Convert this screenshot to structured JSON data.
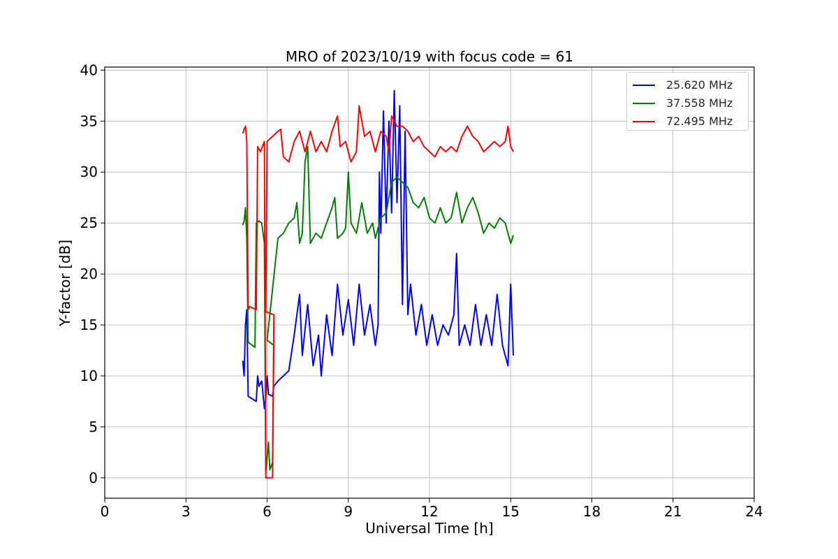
{
  "chart_data": {
    "type": "line",
    "title": "MRO of 2023/10/19 with focus code = 61",
    "xlabel": "Universal Time [h]",
    "ylabel": "Y-factor [dB]",
    "xlim": [
      0,
      24
    ],
    "ylim": [
      -2,
      40.3
    ],
    "xticks": [
      0,
      3,
      6,
      9,
      12,
      15,
      18,
      21,
      24
    ],
    "yticks": [
      0,
      5,
      10,
      15,
      20,
      25,
      30,
      35,
      40
    ],
    "grid": true,
    "legend_position": "top-right",
    "series": [
      {
        "name": "25.620 MHz",
        "color": "#0000ff",
        "points": [
          [
            5.1,
            11.5
          ],
          [
            5.15,
            10.0
          ],
          [
            5.2,
            15.0
          ],
          [
            5.25,
            16.5
          ],
          [
            5.3,
            8.0
          ],
          [
            5.6,
            7.5
          ],
          [
            5.65,
            10.0
          ],
          [
            5.7,
            9.0
          ],
          [
            5.8,
            9.5
          ],
          [
            5.9,
            6.8
          ],
          [
            5.95,
            8.0
          ],
          [
            6.0,
            10.0
          ],
          [
            6.05,
            8.2
          ],
          [
            6.2,
            8.0
          ],
          [
            6.25,
            9.0
          ],
          [
            6.4,
            9.5
          ],
          [
            6.6,
            10.0
          ],
          [
            6.8,
            10.5
          ],
          [
            7.0,
            14.0
          ],
          [
            7.2,
            18.0
          ],
          [
            7.3,
            12.0
          ],
          [
            7.5,
            17.0
          ],
          [
            7.7,
            11.0
          ],
          [
            7.9,
            14.0
          ],
          [
            8.0,
            10.0
          ],
          [
            8.2,
            16.0
          ],
          [
            8.4,
            12.0
          ],
          [
            8.6,
            19.0
          ],
          [
            8.8,
            14.0
          ],
          [
            9.0,
            17.5
          ],
          [
            9.2,
            13.0
          ],
          [
            9.4,
            19.0
          ],
          [
            9.6,
            14.0
          ],
          [
            9.8,
            17.0
          ],
          [
            10.0,
            13.0
          ],
          [
            10.1,
            15.0
          ],
          [
            10.15,
            30.0
          ],
          [
            10.2,
            24.0
          ],
          [
            10.3,
            36.0
          ],
          [
            10.4,
            25.0
          ],
          [
            10.5,
            35.0
          ],
          [
            10.6,
            26.0
          ],
          [
            10.7,
            38.0
          ],
          [
            10.8,
            27.0
          ],
          [
            10.9,
            36.5
          ],
          [
            11.0,
            17.0
          ],
          [
            11.1,
            34.0
          ],
          [
            11.2,
            16.0
          ],
          [
            11.3,
            19.0
          ],
          [
            11.5,
            14.0
          ],
          [
            11.7,
            17.0
          ],
          [
            11.9,
            13.0
          ],
          [
            12.1,
            16.0
          ],
          [
            12.3,
            13.0
          ],
          [
            12.5,
            15.0
          ],
          [
            12.7,
            14.0
          ],
          [
            12.9,
            16.0
          ],
          [
            13.0,
            22.0
          ],
          [
            13.1,
            13.0
          ],
          [
            13.3,
            15.0
          ],
          [
            13.5,
            13.0
          ],
          [
            13.7,
            17.0
          ],
          [
            13.9,
            13.0
          ],
          [
            14.1,
            16.0
          ],
          [
            14.3,
            13.0
          ],
          [
            14.5,
            18.0
          ],
          [
            14.7,
            13.0
          ],
          [
            14.9,
            11.0
          ],
          [
            15.0,
            19.0
          ],
          [
            15.1,
            12.0
          ]
        ]
      },
      {
        "name": "37.558 MHz",
        "color": "#008000",
        "points": [
          [
            5.1,
            24.8
          ],
          [
            5.15,
            25.2
          ],
          [
            5.2,
            26.5
          ],
          [
            5.25,
            23.5
          ],
          [
            5.3,
            13.3
          ],
          [
            5.55,
            12.8
          ],
          [
            5.6,
            25.0
          ],
          [
            5.7,
            25.2
          ],
          [
            5.8,
            25.0
          ],
          [
            5.9,
            23.0
          ],
          [
            5.95,
            0.5
          ],
          [
            6.05,
            3.5
          ],
          [
            6.1,
            0.8
          ],
          [
            6.2,
            1.5
          ],
          [
            6.25,
            13.0
          ],
          [
            6.0,
            13.5
          ],
          [
            6.4,
            23.5
          ],
          [
            6.6,
            24.0
          ],
          [
            6.8,
            25.0
          ],
          [
            7.0,
            25.5
          ],
          [
            7.1,
            27.0
          ],
          [
            7.2,
            23.0
          ],
          [
            7.3,
            24.0
          ],
          [
            7.4,
            31.0
          ],
          [
            7.5,
            32.5
          ],
          [
            7.6,
            23.0
          ],
          [
            7.8,
            24.0
          ],
          [
            8.0,
            23.5
          ],
          [
            8.2,
            25.0
          ],
          [
            8.4,
            26.5
          ],
          [
            8.5,
            27.5
          ],
          [
            8.6,
            23.5
          ],
          [
            8.8,
            24.0
          ],
          [
            8.9,
            24.5
          ],
          [
            9.0,
            30.0
          ],
          [
            9.1,
            25.0
          ],
          [
            9.3,
            24.0
          ],
          [
            9.5,
            27.0
          ],
          [
            9.7,
            24.0
          ],
          [
            9.9,
            25.0
          ],
          [
            10.0,
            23.5
          ],
          [
            10.2,
            25.5
          ],
          [
            10.4,
            26.0
          ],
          [
            10.6,
            29.0
          ],
          [
            10.8,
            29.5
          ],
          [
            11.0,
            29.0
          ],
          [
            11.2,
            28.5
          ],
          [
            11.4,
            27.0
          ],
          [
            11.6,
            26.5
          ],
          [
            11.8,
            27.5
          ],
          [
            12.0,
            25.5
          ],
          [
            12.2,
            25.0
          ],
          [
            12.4,
            26.5
          ],
          [
            12.6,
            25.0
          ],
          [
            12.8,
            25.5
          ],
          [
            13.0,
            28.0
          ],
          [
            13.2,
            25.0
          ],
          [
            13.4,
            26.5
          ],
          [
            13.6,
            27.5
          ],
          [
            13.8,
            26.0
          ],
          [
            14.0,
            24.0
          ],
          [
            14.2,
            25.0
          ],
          [
            14.4,
            24.5
          ],
          [
            14.6,
            25.5
          ],
          [
            14.8,
            25.0
          ],
          [
            15.0,
            23.0
          ],
          [
            15.1,
            23.8
          ]
        ]
      },
      {
        "name": "72.495 MHz",
        "color": "#ff0000",
        "points": [
          [
            5.1,
            33.8
          ],
          [
            5.15,
            34.2
          ],
          [
            5.2,
            34.5
          ],
          [
            5.25,
            33.0
          ],
          [
            5.3,
            16.5
          ],
          [
            5.35,
            16.8
          ],
          [
            5.6,
            16.5
          ],
          [
            5.65,
            32.5
          ],
          [
            5.75,
            32.0
          ],
          [
            5.9,
            33.0
          ],
          [
            5.95,
            0.0
          ],
          [
            6.2,
            0.0
          ],
          [
            6.25,
            16.0
          ],
          [
            5.95,
            16.3
          ],
          [
            6.0,
            33.0
          ],
          [
            6.2,
            33.5
          ],
          [
            6.4,
            34.0
          ],
          [
            6.5,
            34.2
          ],
          [
            6.6,
            31.5
          ],
          [
            6.8,
            31.0
          ],
          [
            7.0,
            33.0
          ],
          [
            7.2,
            34.0
          ],
          [
            7.4,
            32.0
          ],
          [
            7.6,
            34.0
          ],
          [
            7.8,
            32.0
          ],
          [
            8.0,
            33.0
          ],
          [
            8.2,
            32.0
          ],
          [
            8.4,
            34.0
          ],
          [
            8.6,
            35.5
          ],
          [
            8.7,
            32.5
          ],
          [
            8.9,
            33.0
          ],
          [
            9.1,
            31.0
          ],
          [
            9.3,
            32.0
          ],
          [
            9.4,
            36.5
          ],
          [
            9.6,
            33.5
          ],
          [
            9.8,
            34.0
          ],
          [
            10.0,
            32.0
          ],
          [
            10.2,
            34.0
          ],
          [
            10.4,
            33.5
          ],
          [
            10.5,
            32.0
          ],
          [
            10.6,
            35.5
          ],
          [
            10.8,
            34.5
          ],
          [
            11.0,
            34.5
          ],
          [
            11.2,
            34.0
          ],
          [
            11.4,
            33.0
          ],
          [
            11.6,
            33.5
          ],
          [
            11.8,
            32.5
          ],
          [
            12.0,
            32.0
          ],
          [
            12.2,
            31.5
          ],
          [
            12.4,
            32.5
          ],
          [
            12.6,
            32.0
          ],
          [
            12.8,
            32.5
          ],
          [
            13.0,
            32.0
          ],
          [
            13.2,
            33.5
          ],
          [
            13.4,
            34.5
          ],
          [
            13.6,
            33.5
          ],
          [
            13.8,
            33.0
          ],
          [
            14.0,
            32.0
          ],
          [
            14.2,
            32.5
          ],
          [
            14.4,
            33.0
          ],
          [
            14.6,
            32.5
          ],
          [
            14.8,
            33.0
          ],
          [
            14.9,
            34.5
          ],
          [
            15.0,
            32.5
          ],
          [
            15.1,
            32.0
          ]
        ]
      }
    ]
  }
}
